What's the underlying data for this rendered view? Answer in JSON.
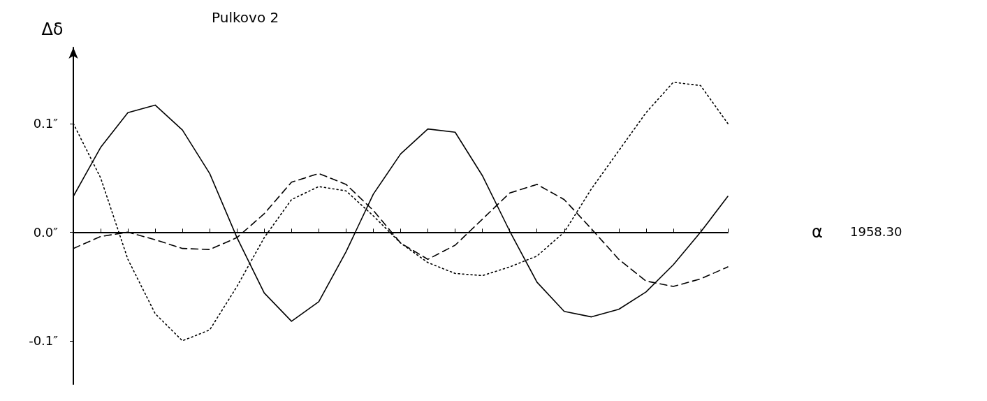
{
  "chart_data": {
    "type": "line",
    "title": "Pulkovo 2",
    "xlabel": "α",
    "ylabel": "Δδ",
    "annotations": [
      "1958.30"
    ],
    "categories": [
      null,
      null,
      null,
      null,
      null,
      null,
      null,
      null,
      null,
      null,
      null,
      null,
      null,
      null,
      null,
      null,
      null,
      null,
      null,
      null,
      null,
      null,
      null,
      null,
      null
    ],
    "series": [
      {
        "color": "#000000",
        "line_style": "solid",
        "values": [
          0.033,
          0.078,
          0.11,
          0.117,
          0.094,
          0.054,
          -0.005,
          -0.056,
          -0.082,
          -0.064,
          -0.018,
          0.035,
          0.072,
          0.095,
          0.092,
          0.052,
          0.001,
          -0.046,
          -0.073,
          -0.078,
          -0.071,
          -0.055,
          -0.03,
          0.0,
          0.033
        ]
      },
      {
        "color": "#000000",
        "line_style": "dashed",
        "values": [
          -0.015,
          -0.004,
          0.0,
          -0.007,
          -0.015,
          -0.016,
          -0.005,
          0.017,
          0.046,
          0.054,
          0.044,
          0.02,
          -0.01,
          -0.025,
          -0.012,
          0.012,
          0.036,
          0.044,
          0.03,
          0.003,
          -0.025,
          -0.045,
          -0.05,
          -0.043,
          -0.032
        ]
      },
      {
        "color": "#000000",
        "line_style": "dotted",
        "values": [
          0.1,
          0.05,
          -0.025,
          -0.075,
          -0.1,
          -0.09,
          -0.05,
          -0.005,
          0.03,
          0.042,
          0.038,
          0.015,
          -0.01,
          -0.028,
          -0.038,
          -0.04,
          -0.032,
          -0.022,
          0.0,
          0.04,
          0.075,
          0.11,
          0.138,
          0.135,
          0.1
        ]
      }
    ],
    "ylim": [
      -0.14,
      0.17
    ],
    "yticks": [
      {
        "value": -0.1,
        "label": "-0.1″"
      },
      {
        "value": 0,
        "label": "0.0″"
      },
      {
        "value": 0.1,
        "label": "0.1″"
      }
    ],
    "tick_labels": "y",
    "marker": "none"
  }
}
